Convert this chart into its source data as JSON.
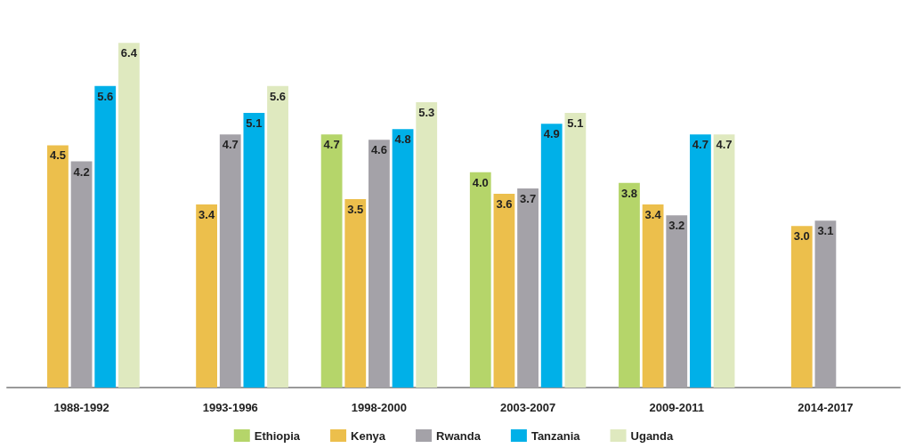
{
  "chart_data": {
    "type": "bar",
    "categories": [
      "1988-1992",
      "1993-1996",
      "1998-2000",
      "2003-2007",
      "2009-2011",
      "2014-2017"
    ],
    "series": [
      {
        "name": "Ethiopia",
        "color": "#b5d56a",
        "values": [
          null,
          null,
          4.7,
          4.0,
          3.8,
          null
        ],
        "value_labels": [
          null,
          null,
          "4.7",
          "4.0",
          "3.8",
          null
        ]
      },
      {
        "name": "Kenya",
        "color": "#ecbf4c",
        "values": [
          4.5,
          3.4,
          3.5,
          3.6,
          3.4,
          3.0
        ],
        "value_labels": [
          "4.5",
          "3.4",
          "3.5",
          "3.6",
          "3.4",
          "3.0"
        ]
      },
      {
        "name": "Rwanda",
        "color": "#a4a2a8",
        "values": [
          4.2,
          4.7,
          4.6,
          3.7,
          3.2,
          3.1
        ],
        "value_labels": [
          "4.2",
          "4.7",
          "4.6",
          "3.7",
          "3.2",
          "3.1"
        ]
      },
      {
        "name": "Tanzania",
        "color": "#00b0e8",
        "values": [
          5.6,
          5.1,
          4.8,
          4.9,
          4.7,
          null
        ],
        "value_labels": [
          "5.6",
          "5.1",
          "4.8",
          "4.9",
          "4.7",
          null
        ]
      },
      {
        "name": "Uganda",
        "color": "#dfe9bf",
        "values": [
          6.4,
          5.6,
          5.3,
          5.1,
          4.7,
          null
        ],
        "value_labels": [
          "6.4",
          "5.6",
          "5.3",
          "5.1",
          "4.7",
          null
        ]
      }
    ],
    "legend": "bottom",
    "grid": false
  }
}
